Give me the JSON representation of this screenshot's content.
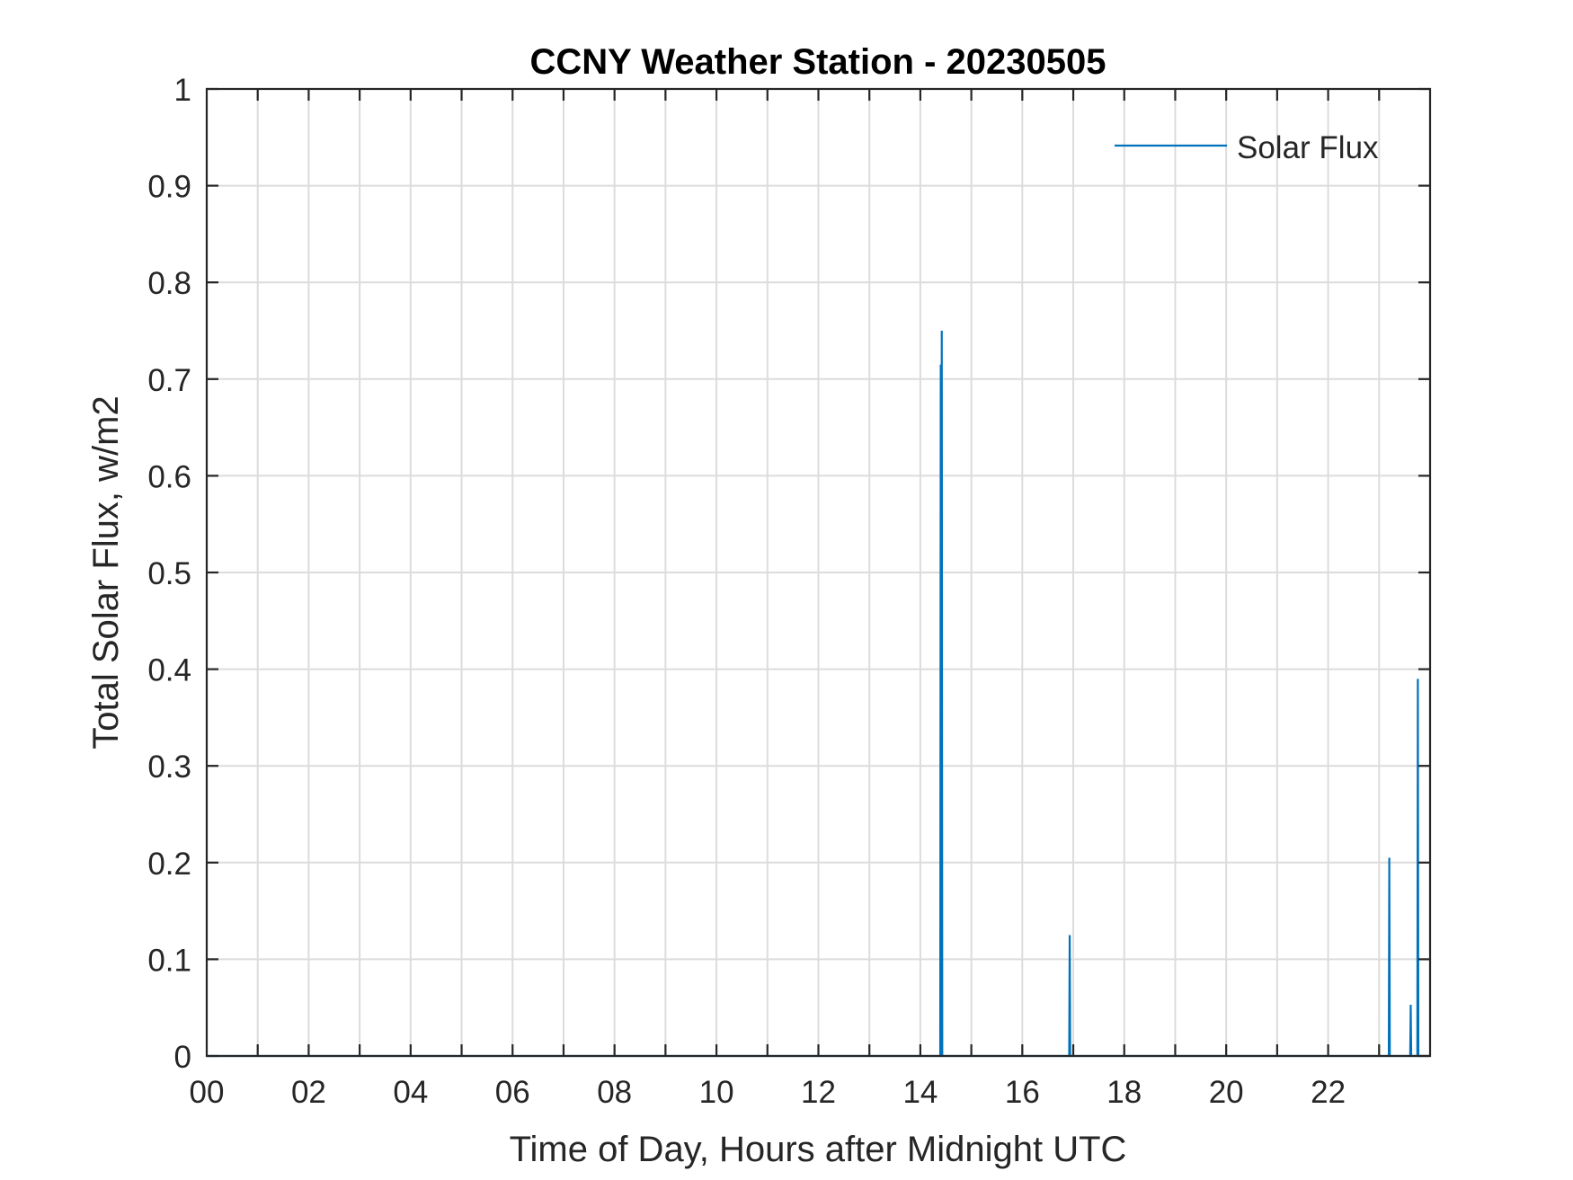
{
  "chart_data": {
    "type": "line",
    "title": "CCNY Weather Station - 20230505",
    "xlabel": "Time of Day, Hours after Midnight UTC",
    "ylabel": "Total Solar Flux, w/m2",
    "xlim": [
      0,
      24
    ],
    "ylim": [
      0,
      1
    ],
    "xticks": [
      0,
      2,
      4,
      6,
      8,
      10,
      12,
      14,
      16,
      18,
      20,
      22
    ],
    "xtick_labels": [
      "00",
      "02",
      "04",
      "06",
      "08",
      "10",
      "12",
      "14",
      "16",
      "18",
      "20",
      "22"
    ],
    "yticks": [
      0,
      0.1,
      0.2,
      0.3,
      0.4,
      0.5,
      0.6,
      0.7,
      0.8,
      0.9,
      1
    ],
    "ytick_labels": [
      "0",
      "0.1",
      "0.2",
      "0.3",
      "0.4",
      "0.5",
      "0.6",
      "0.7",
      "0.8",
      "0.9",
      "1"
    ],
    "grid": true,
    "legend_position": "top-right",
    "series": [
      {
        "name": "Solar Flux",
        "color": "#0072BD",
        "points": [
          [
            0,
            0
          ],
          [
            14.39,
            0
          ],
          [
            14.4,
            0.715
          ],
          [
            14.41,
            0
          ],
          [
            14.42,
            0.75
          ],
          [
            14.43,
            0
          ],
          [
            16.92,
            0
          ],
          [
            16.93,
            0.125
          ],
          [
            16.94,
            0
          ],
          [
            23.19,
            0
          ],
          [
            23.2,
            0.205
          ],
          [
            23.21,
            0
          ],
          [
            23.61,
            0
          ],
          [
            23.62,
            0.053
          ],
          [
            23.63,
            0
          ],
          [
            23.75,
            0
          ],
          [
            23.76,
            0.39
          ],
          [
            23.77,
            0
          ],
          [
            24,
            0
          ]
        ]
      }
    ]
  }
}
